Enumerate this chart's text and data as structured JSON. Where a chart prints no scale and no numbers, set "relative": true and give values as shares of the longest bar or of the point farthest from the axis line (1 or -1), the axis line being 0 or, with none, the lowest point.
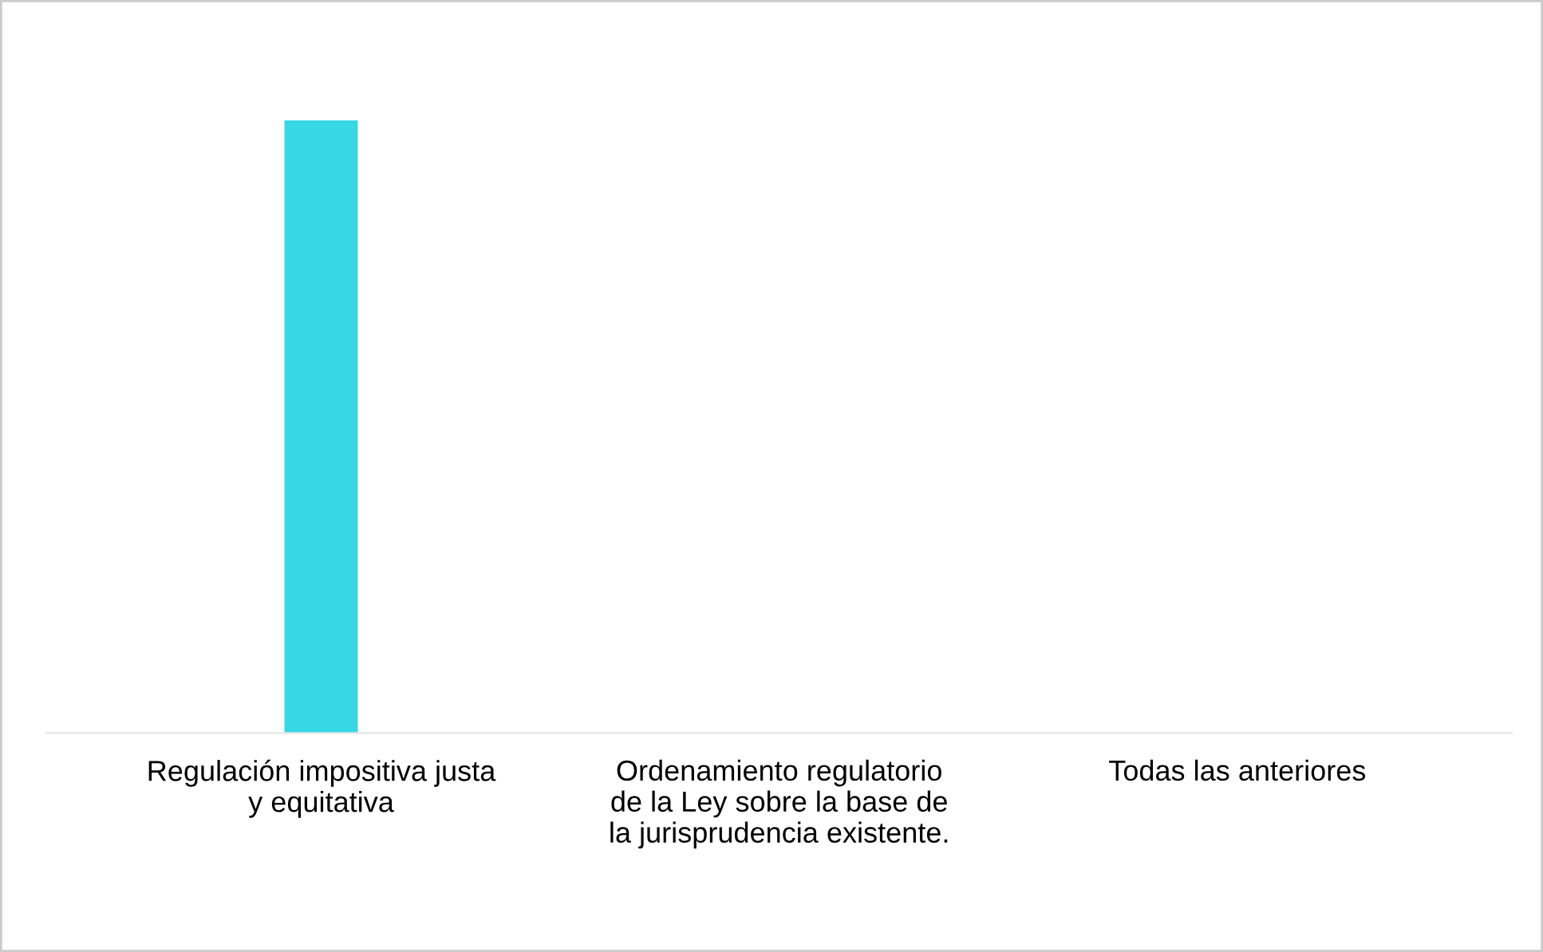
{
  "chart_data": {
    "type": "bar",
    "relative": true,
    "categories": [
      "Regulación impositiva justa\ny equitativa",
      "Ordenamiento regulatorio\nde la Ley sobre la base de\nla jurisprudencia existente.",
      "Todas las anteriores"
    ],
    "values": [
      1,
      0,
      0
    ],
    "color": "#36d8e6"
  }
}
